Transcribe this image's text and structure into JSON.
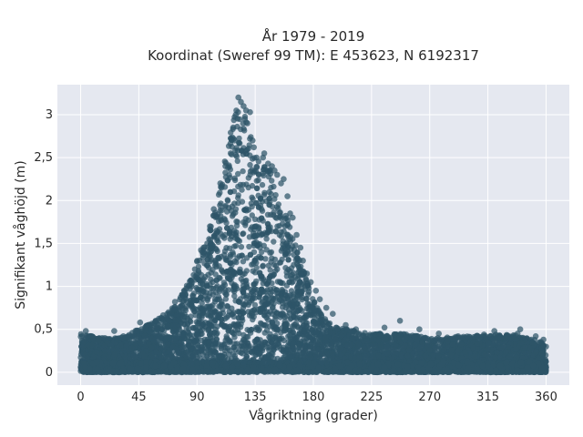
{
  "chart_data": {
    "type": "scatter",
    "title_lines": [
      "År 1979 - 2019",
      "Koordinat (Sweref 99 TM): E 453623, N 6192317"
    ],
    "xlabel": "Vågriktning (grader)",
    "ylabel": "Signifikant våghöjd (m)",
    "xlim": [
      -18,
      378
    ],
    "ylim": [
      -0.15,
      3.35
    ],
    "x_ticks": [
      0,
      45,
      90,
      135,
      180,
      225,
      270,
      315,
      360
    ],
    "x_tick_labels": [
      "0",
      "45",
      "90",
      "135",
      "180",
      "225",
      "270",
      "315",
      "360"
    ],
    "y_ticks": [
      0,
      0.5,
      1,
      1.5,
      2,
      2.5,
      3
    ],
    "y_tick_labels": [
      "0",
      "0,5",
      "1",
      "1,5",
      "2",
      "2,5",
      "3"
    ],
    "grid": true,
    "legend": "none",
    "point_color": "#2e5468",
    "plot_background": "#e5e8f0",
    "envelope": {
      "direction_deg": [
        0,
        15,
        30,
        45,
        60,
        75,
        90,
        100,
        105,
        110,
        115,
        120,
        125,
        130,
        135,
        140,
        145,
        150,
        155,
        160,
        165,
        170,
        180,
        190,
        200,
        225,
        250,
        270,
        300,
        330,
        360
      ],
      "max_height_m": [
        0.45,
        0.4,
        0.4,
        0.5,
        0.62,
        0.8,
        1.3,
        1.7,
        2.0,
        2.35,
        2.75,
        3.15,
        3.1,
        2.9,
        2.5,
        2.45,
        2.4,
        2.3,
        2.05,
        1.8,
        1.55,
        1.3,
        0.85,
        0.6,
        0.52,
        0.45,
        0.45,
        0.4,
        0.42,
        0.45,
        0.35
      ]
    },
    "points": [
      [
        122,
        3.2
      ],
      [
        124,
        3.15
      ],
      [
        126,
        3.1
      ],
      [
        128,
        3.05
      ],
      [
        120,
        3.0
      ],
      [
        131,
        3.03
      ],
      [
        118,
        2.85
      ],
      [
        119,
        2.7
      ],
      [
        127,
        2.95
      ],
      [
        129,
        2.9
      ],
      [
        116,
        2.55
      ],
      [
        133,
        2.7
      ],
      [
        134,
        2.62
      ],
      [
        136,
        2.5
      ],
      [
        141,
        2.5
      ],
      [
        142,
        2.55
      ],
      [
        145,
        2.43
      ],
      [
        148,
        2.4
      ],
      [
        150,
        2.35
      ],
      [
        152,
        2.3
      ],
      [
        155,
        2.2
      ],
      [
        157,
        2.25
      ],
      [
        160,
        2.05
      ],
      [
        162,
        1.85
      ],
      [
        164,
        1.8
      ],
      [
        167,
        1.6
      ],
      [
        170,
        1.45
      ],
      [
        172,
        1.3
      ],
      [
        175,
        1.15
      ],
      [
        178,
        1.05
      ],
      [
        182,
        0.95
      ],
      [
        185,
        0.85
      ],
      [
        190,
        0.75
      ],
      [
        195,
        0.68
      ],
      [
        205,
        0.55
      ],
      [
        213,
        0.5
      ],
      [
        4,
        0.48
      ],
      [
        26,
        0.48
      ],
      [
        33,
        0.42
      ],
      [
        46,
        0.58
      ],
      [
        58,
        0.6
      ],
      [
        68,
        0.7
      ],
      [
        73,
        0.82
      ],
      [
        80,
        0.95
      ],
      [
        86,
        1.05
      ],
      [
        92,
        1.3
      ],
      [
        95,
        1.45
      ],
      [
        100,
        1.7
      ],
      [
        103,
        1.9
      ],
      [
        108,
        2.2
      ],
      [
        112,
        2.4
      ],
      [
        235,
        0.52
      ],
      [
        247,
        0.6
      ],
      [
        262,
        0.5
      ],
      [
        277,
        0.45
      ],
      [
        292,
        0.42
      ],
      [
        312,
        0.44
      ],
      [
        320,
        0.48
      ],
      [
        325,
        0.4
      ],
      [
        338,
        0.45
      ],
      [
        340,
        0.5
      ],
      [
        352,
        0.42
      ],
      [
        355,
        0.35
      ],
      [
        358,
        0.38
      ]
    ]
  }
}
